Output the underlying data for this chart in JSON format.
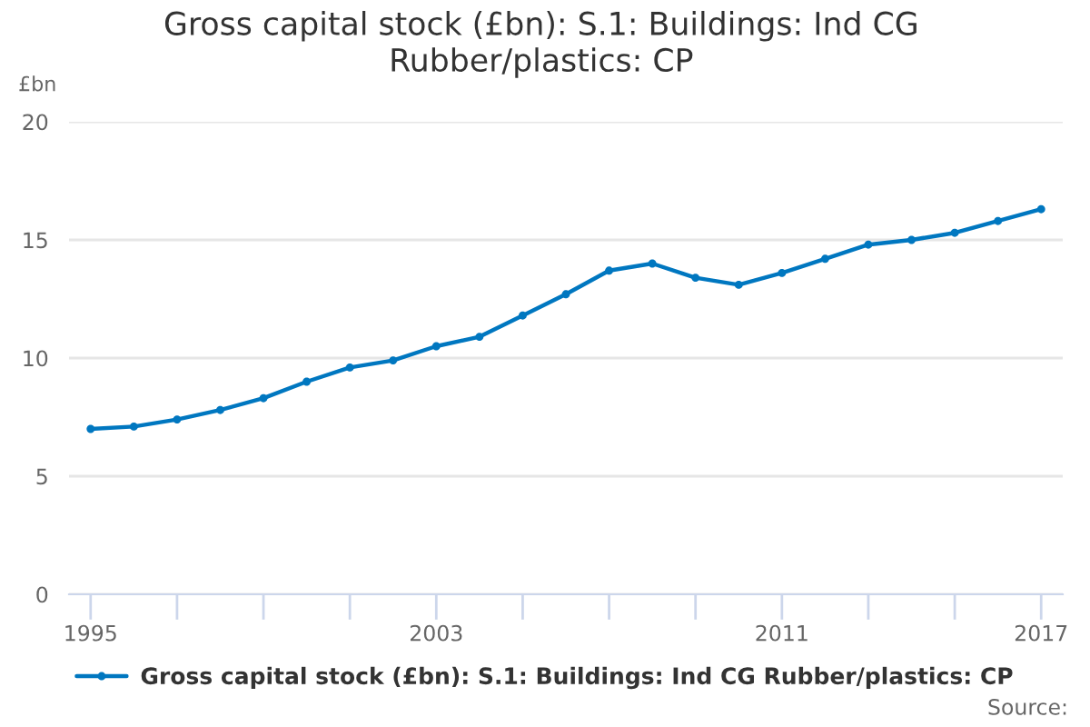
{
  "chart_data": {
    "type": "line",
    "title": "Gross capital stock (£bn): S.1: Buildings: Ind CG Rubber/plastics: CP",
    "ylabel": "£bn",
    "x": [
      1995,
      1996,
      1997,
      1998,
      1999,
      2000,
      2001,
      2002,
      2003,
      2004,
      2005,
      2006,
      2007,
      2008,
      2009,
      2010,
      2011,
      2012,
      2013,
      2014,
      2015,
      2016,
      2017
    ],
    "series": [
      {
        "name": "Gross capital stock (£bn): S.1: Buildings: Ind CG Rubber/plastics: CP",
        "color": "#0077c0",
        "values": [
          7.0,
          7.1,
          7.4,
          7.8,
          8.3,
          9.0,
          9.6,
          9.9,
          10.5,
          10.9,
          11.8,
          12.7,
          13.7,
          14.0,
          13.4,
          13.1,
          13.6,
          14.2,
          14.8,
          15.0,
          15.3,
          15.8,
          16.3
        ]
      }
    ],
    "xlim": [
      1994.5,
      2017.5
    ],
    "xticks": [
      1995,
      {
        "value": 1997,
        "label": null
      },
      {
        "value": 1999,
        "label": null
      },
      {
        "value": 2001,
        "label": null
      },
      2003,
      {
        "value": 2005,
        "label": null
      },
      {
        "value": 2007,
        "label": null
      },
      {
        "value": 2009,
        "label": null
      },
      2011,
      {
        "value": 2013,
        "label": null
      },
      {
        "value": 2015,
        "label": null
      },
      2017
    ],
    "ylim": [
      0,
      20
    ],
    "yticks": [
      0,
      5,
      10,
      15,
      20
    ],
    "grid": "y",
    "legend": "bottom",
    "marker": "circle",
    "line_style": "solid",
    "annotations": [
      "Source:"
    ]
  }
}
